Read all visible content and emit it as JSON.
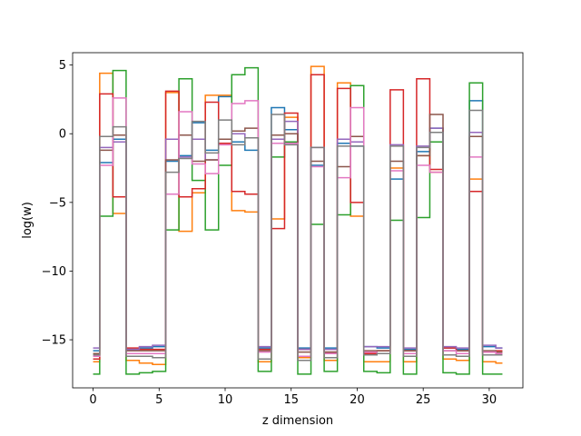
{
  "chart_data": {
    "type": "line",
    "drawstyle": "steps-mid",
    "xlabel": "z dimension",
    "ylabel": "log(w)",
    "xlim": [
      -1.55,
      32.55
    ],
    "ylim": [
      -18.5,
      5.9
    ],
    "xticks": [
      0,
      5,
      10,
      15,
      20,
      25,
      30
    ],
    "yticks": [
      5,
      0,
      -5,
      -10,
      -15
    ],
    "grid": false,
    "legend": "none",
    "x": [
      0,
      1,
      2,
      3,
      4,
      5,
      6,
      7,
      8,
      9,
      10,
      11,
      12,
      13,
      14,
      15,
      16,
      17,
      18,
      19,
      20,
      21,
      22,
      23,
      24,
      25,
      26,
      27,
      28,
      29,
      30,
      31
    ],
    "series": [
      {
        "color": "#1f77b4",
        "values": [
          -15.8,
          -2.1,
          -0.4,
          -15.7,
          -15.6,
          -15.5,
          -2.0,
          -1.6,
          0.8,
          -1.2,
          2.7,
          -0.6,
          -1.2,
          -15.6,
          1.9,
          0.3,
          -15.6,
          -2.3,
          -15.6,
          -0.7,
          -0.9,
          -15.5,
          -15.6,
          -3.3,
          -15.7,
          -1.3,
          0.4,
          -15.6,
          -15.7,
          2.4,
          -15.5,
          -15.6
        ]
      },
      {
        "color": "#ff7f0e",
        "values": [
          -16.6,
          4.4,
          -5.8,
          -16.5,
          -16.7,
          -16.8,
          3.0,
          -7.1,
          -4.3,
          2.8,
          2.8,
          -5.6,
          -5.7,
          -16.6,
          -6.2,
          1.2,
          -16.3,
          4.9,
          -16.5,
          3.7,
          -6.0,
          -16.6,
          -16.6,
          -2.5,
          -16.6,
          -1.6,
          -2.8,
          -16.4,
          -16.5,
          -3.3,
          -16.6,
          -16.7
        ]
      },
      {
        "color": "#2ca02c",
        "values": [
          -17.5,
          -6.0,
          4.6,
          -17.5,
          -17.4,
          -17.3,
          -7.0,
          4.0,
          -3.4,
          -7.0,
          -2.3,
          4.3,
          4.8,
          -17.3,
          -1.7,
          -0.6,
          -17.5,
          -6.6,
          -17.3,
          -5.9,
          3.5,
          -17.3,
          -17.4,
          -6.3,
          -17.5,
          -6.1,
          -0.6,
          -17.4,
          -17.5,
          3.7,
          -17.5,
          -17.5
        ]
      },
      {
        "color": "#d62728",
        "values": [
          -16.4,
          2.9,
          -4.6,
          -15.6,
          -15.7,
          -15.7,
          3.1,
          -4.6,
          -4.0,
          2.3,
          -0.7,
          -4.2,
          -4.4,
          -15.7,
          -6.9,
          1.5,
          -15.7,
          4.3,
          -15.9,
          3.3,
          -5.0,
          -16.0,
          -15.8,
          3.2,
          -15.8,
          4.0,
          -2.6,
          -15.6,
          -15.8,
          -4.2,
          -15.9,
          -15.8
        ]
      },
      {
        "color": "#9467bd",
        "values": [
          -15.6,
          -1.0,
          -0.6,
          -15.7,
          -15.5,
          -15.4,
          -0.4,
          -1.7,
          -0.4,
          -1.9,
          -0.4,
          0.0,
          -0.3,
          -15.5,
          -0.4,
          0.9,
          -15.7,
          -1.0,
          -15.7,
          -0.4,
          -0.6,
          -15.5,
          -15.5,
          -0.8,
          -15.6,
          -0.9,
          0.4,
          -15.5,
          -15.6,
          0.1,
          -15.4,
          -15.6
        ]
      },
      {
        "color": "#8c564b",
        "values": [
          -16.0,
          -1.2,
          -0.1,
          -15.8,
          -15.8,
          -15.8,
          -1.9,
          -0.1,
          -2.0,
          -1.9,
          -0.4,
          0.2,
          0.4,
          -15.8,
          -0.1,
          0.0,
          -15.9,
          -2.0,
          -15.9,
          -2.4,
          -0.2,
          -15.8,
          -15.8,
          -2.0,
          -15.8,
          -1.6,
          1.4,
          -15.8,
          -15.8,
          -0.2,
          -15.8,
          -15.9
        ]
      },
      {
        "color": "#e377c2",
        "values": [
          -16.2,
          -2.3,
          2.6,
          -16.0,
          -16.0,
          -16.0,
          -4.4,
          1.6,
          -2.2,
          -2.9,
          -0.8,
          2.2,
          2.4,
          -15.9,
          -0.7,
          -0.7,
          -16.2,
          -2.4,
          -16.0,
          -3.2,
          1.9,
          -15.9,
          -16.0,
          -2.7,
          -16.0,
          -2.3,
          -2.8,
          -15.8,
          -16.0,
          -1.7,
          -15.9,
          -16.0
        ]
      },
      {
        "color": "#7f7f7f",
        "values": [
          -16.1,
          -0.2,
          0.5,
          -16.2,
          -16.2,
          -16.3,
          -2.8,
          -1.8,
          0.9,
          -1.4,
          1.0,
          -0.8,
          -0.3,
          -16.4,
          1.4,
          -0.8,
          -16.5,
          -1.0,
          -16.3,
          -0.9,
          -0.9,
          -16.1,
          -16.0,
          -0.9,
          -16.2,
          -1.0,
          0.1,
          -16.1,
          -16.2,
          1.7,
          -16.1,
          -16.1
        ]
      }
    ]
  }
}
